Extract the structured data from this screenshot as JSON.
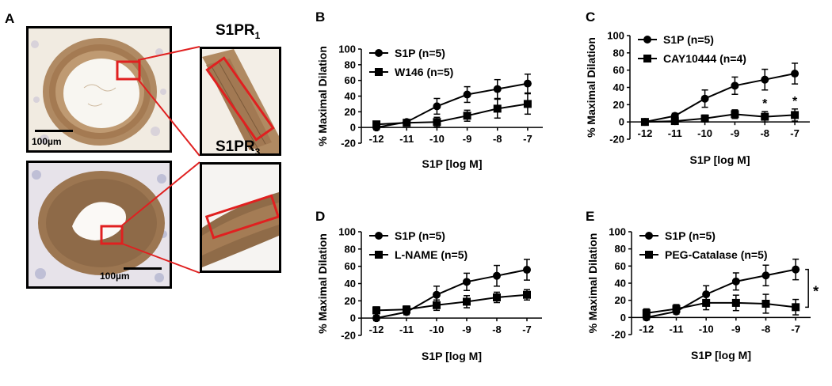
{
  "panel_a": {
    "letter": "A",
    "receptor_1": {
      "base": "S1PR",
      "sub": "1"
    },
    "receptor_3": {
      "base": "S1PR",
      "sub": "3"
    },
    "scale_bar_top": "100µm",
    "scale_bar_bottom": "100µm",
    "colors": {
      "tissue": "#9b7550",
      "background": "#f6f2ea",
      "nuclei": "#8a8fb8",
      "highlight": "#e02020"
    }
  },
  "chart_data": [
    {
      "letter": "B",
      "type": "line",
      "xlabel": "S1P [log M]",
      "ylabel": "% Maximal Dilation",
      "x": [
        -12,
        -11,
        -10,
        -9,
        -8,
        -7
      ],
      "xlim": [
        -12.5,
        -6.5
      ],
      "ylim": [
        -20,
        100
      ],
      "xticks": [
        -12,
        -11,
        -10,
        -9,
        -8,
        -7
      ],
      "yticks": [
        -20,
        0,
        20,
        40,
        60,
        80,
        100
      ],
      "legend_position": "top-left",
      "series": [
        {
          "name": "S1P (n=5)",
          "marker": "circle",
          "values": [
            0,
            7,
            27,
            42,
            49,
            56
          ],
          "errors": [
            3,
            3,
            10,
            10,
            12,
            12
          ]
        },
        {
          "name": "W146 (n=5)",
          "marker": "square",
          "values": [
            4,
            6,
            7,
            15,
            24,
            30
          ],
          "errors": [
            4,
            3,
            6,
            7,
            12,
            13
          ]
        }
      ],
      "annotations": []
    },
    {
      "letter": "C",
      "type": "line",
      "xlabel": "S1P [log M]",
      "ylabel": "% Maximal Dilation",
      "x": [
        -12,
        -11,
        -10,
        -9,
        -8,
        -7
      ],
      "xlim": [
        -12.5,
        -6.5
      ],
      "ylim": [
        -20,
        100
      ],
      "xticks": [
        -12,
        -11,
        -10,
        -9,
        -8,
        -7
      ],
      "yticks": [
        -20,
        0,
        20,
        40,
        60,
        80,
        100
      ],
      "legend_position": "top-left",
      "series": [
        {
          "name": "S1P (n=5)",
          "marker": "circle",
          "values": [
            0,
            7,
            27,
            42,
            49,
            56
          ],
          "errors": [
            3,
            3,
            10,
            10,
            12,
            12
          ]
        },
        {
          "name": "CAY10444 (n=4)",
          "marker": "square",
          "values": [
            0,
            1,
            4,
            9,
            6,
            8
          ],
          "errors": [
            3,
            3,
            4,
            5,
            6,
            7
          ]
        }
      ],
      "annotations": [
        {
          "text": "*",
          "x": -8
        },
        {
          "text": "*",
          "x": -7
        }
      ]
    },
    {
      "letter": "D",
      "type": "line",
      "xlabel": "S1P [log M]",
      "ylabel": "% Maximal Dilation",
      "x": [
        -12,
        -11,
        -10,
        -9,
        -8,
        -7
      ],
      "xlim": [
        -12.5,
        -6.5
      ],
      "ylim": [
        -20,
        100
      ],
      "xticks": [
        -12,
        -11,
        -10,
        -9,
        -8,
        -7
      ],
      "yticks": [
        -20,
        0,
        20,
        40,
        60,
        80,
        100
      ],
      "legend_position": "top-left",
      "series": [
        {
          "name": "S1P (n=5)",
          "marker": "circle",
          "values": [
            0,
            7,
            27,
            42,
            49,
            56
          ],
          "errors": [
            3,
            3,
            10,
            10,
            12,
            12
          ]
        },
        {
          "name": "L-NAME (n=5)",
          "marker": "square",
          "values": [
            9,
            10,
            15,
            19,
            24,
            27
          ],
          "errors": [
            4,
            4,
            6,
            7,
            6,
            6
          ]
        }
      ],
      "annotations": []
    },
    {
      "letter": "E",
      "type": "line",
      "xlabel": "S1P [log M]",
      "ylabel": "% Maximal Dilation",
      "x": [
        -12,
        -11,
        -10,
        -9,
        -8,
        -7
      ],
      "xlim": [
        -12.5,
        -6.5
      ],
      "ylim": [
        -20,
        100
      ],
      "xticks": [
        -12,
        -11,
        -10,
        -9,
        -8,
        -7
      ],
      "yticks": [
        -20,
        0,
        20,
        40,
        60,
        80,
        100
      ],
      "legend_position": "top-left",
      "series": [
        {
          "name": "S1P (n=5)",
          "marker": "circle",
          "values": [
            0,
            7,
            27,
            42,
            49,
            56
          ],
          "errors": [
            3,
            3,
            10,
            10,
            12,
            12
          ]
        },
        {
          "name": "PEG-Catalase (n=5)",
          "marker": "square",
          "values": [
            5,
            10,
            17,
            17,
            16,
            12
          ],
          "errors": [
            5,
            5,
            8,
            9,
            11,
            9
          ]
        }
      ],
      "annotations": [
        {
          "text": "*",
          "bracket_between_last_points": true
        }
      ]
    }
  ]
}
